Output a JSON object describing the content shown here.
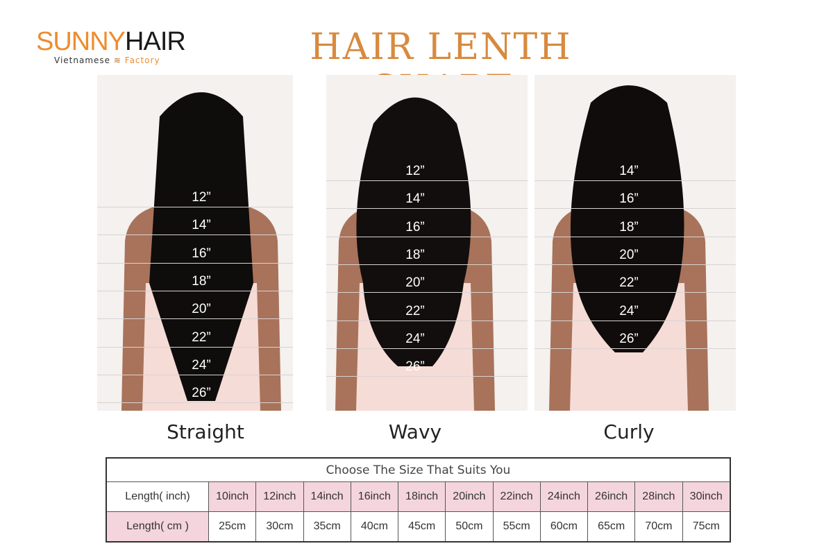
{
  "logo": {
    "brand_part1": "SUNNY",
    "brand_part2": "HAIR",
    "tagline_left": "Vietnamese",
    "tagline_right": "Factory"
  },
  "title": "HAIR LENTH CHART",
  "colors": {
    "title": "#d78a3e",
    "logo_orange": "#ee8c2e",
    "table_pink": "#f4d5de"
  },
  "styles": [
    {
      "name": "Straight",
      "lengths": [
        "12”",
        "14”",
        "16”",
        "18”",
        "20”",
        "22”",
        "24”",
        "26”"
      ]
    },
    {
      "name": "Wavy",
      "lengths": [
        "12”",
        "14”",
        "16”",
        "18”",
        "20”",
        "22”",
        "24”",
        "26”"
      ]
    },
    {
      "name": "Curly",
      "lengths": [
        "14”",
        "16”",
        "18”",
        "20”",
        "22”",
        "24”",
        "26”"
      ]
    }
  ],
  "table": {
    "header": "Choose The Size That Suits You",
    "row_inch_label": "Length( inch)",
    "row_cm_label": "Length( cm )",
    "inches": [
      "10inch",
      "12inch",
      "14inch",
      "16inch",
      "18inch",
      "20inch",
      "22inch",
      "24inch",
      "26inch",
      "28inch",
      "30inch"
    ],
    "cm": [
      "25cm",
      "30cm",
      "35cm",
      "40cm",
      "45cm",
      "50cm",
      "55cm",
      "60cm",
      "65cm",
      "70cm",
      "75cm"
    ]
  }
}
